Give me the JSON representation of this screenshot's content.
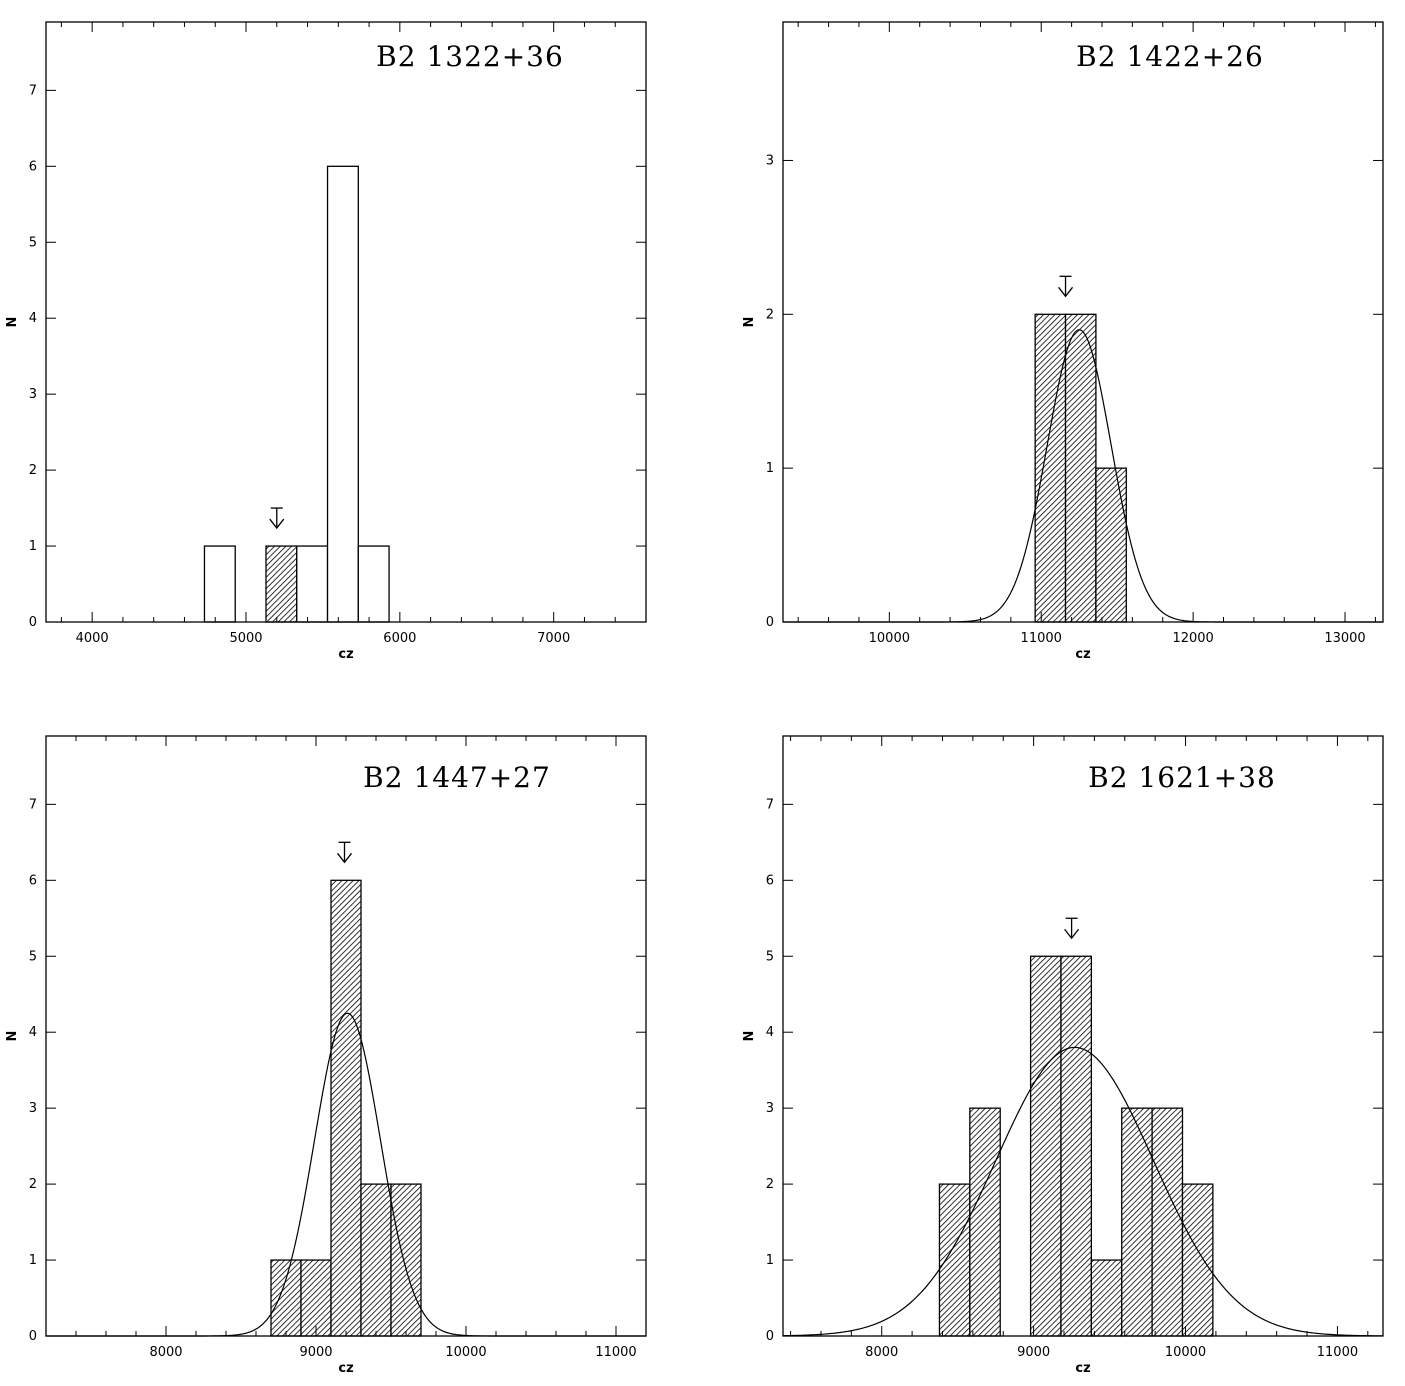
{
  "chart_data": [
    {
      "type": "bar",
      "title": "B2 1322+36",
      "xlabel": "cz",
      "ylabel": "N",
      "xlim": [
        3700,
        7600
      ],
      "ylim": [
        0,
        7.9
      ],
      "xticks": [
        4000,
        5000,
        6000,
        7000
      ],
      "yticks": [
        0,
        1,
        2,
        3,
        4,
        5,
        6,
        7
      ],
      "bin_width": 200,
      "bins": [
        {
          "x": 4730,
          "n": 1,
          "hatched": false
        },
        {
          "x": 5130,
          "n": 1,
          "hatched": true
        },
        {
          "x": 5330,
          "n": 1,
          "hatched": false
        },
        {
          "x": 5530,
          "n": 6,
          "hatched": false
        },
        {
          "x": 5730,
          "n": 1,
          "hatched": false
        }
      ],
      "marker_x": 5200,
      "gaussian": null
    },
    {
      "type": "bar",
      "title": "B2 1422+26",
      "xlabel": "cz",
      "ylabel": "N",
      "xlim": [
        9300,
        13250
      ],
      "ylim": [
        0,
        3.9
      ],
      "xticks": [
        10000,
        11000,
        12000,
        13000
      ],
      "yticks": [
        0,
        1,
        2,
        3
      ],
      "bin_width": 200,
      "bins": [
        {
          "x": 10960,
          "n": 2,
          "hatched": true
        },
        {
          "x": 11160,
          "n": 2,
          "hatched": true
        },
        {
          "x": 11360,
          "n": 1,
          "hatched": true
        }
      ],
      "marker_x": 11160,
      "gaussian": {
        "mean": 11250,
        "sigma": 210,
        "amplitude": 1.9
      }
    },
    {
      "type": "bar",
      "title": "B2 1447+27",
      "xlabel": "cz",
      "ylabel": "N",
      "xlim": [
        7200,
        11200
      ],
      "ylim": [
        0,
        7.9
      ],
      "xticks": [
        8000,
        9000,
        10000,
        11000
      ],
      "yticks": [
        0,
        1,
        2,
        3,
        4,
        5,
        6,
        7
      ],
      "bin_width": 200,
      "bins": [
        {
          "x": 8700,
          "n": 1,
          "hatched": true
        },
        {
          "x": 8900,
          "n": 1,
          "hatched": true
        },
        {
          "x": 9100,
          "n": 6,
          "hatched": true
        },
        {
          "x": 9300,
          "n": 2,
          "hatched": true
        },
        {
          "x": 9500,
          "n": 2,
          "hatched": true
        }
      ],
      "marker_x": 9190,
      "gaussian": {
        "mean": 9210,
        "sigma": 220,
        "amplitude": 4.25
      }
    },
    {
      "type": "bar",
      "title": "B2 1621+38",
      "xlabel": "cz",
      "ylabel": "N",
      "xlim": [
        7350,
        11300
      ],
      "ylim": [
        0,
        7.9
      ],
      "xticks": [
        8000,
        9000,
        10000,
        11000
      ],
      "yticks": [
        0,
        1,
        2,
        3,
        4,
        5,
        6,
        7
      ],
      "bin_width": 200,
      "bins": [
        {
          "x": 8380,
          "n": 2,
          "hatched": true
        },
        {
          "x": 8580,
          "n": 3,
          "hatched": true
        },
        {
          "x": 8980,
          "n": 5,
          "hatched": true
        },
        {
          "x": 9180,
          "n": 5,
          "hatched": true
        },
        {
          "x": 9380,
          "n": 1,
          "hatched": true
        },
        {
          "x": 9580,
          "n": 3,
          "hatched": true
        },
        {
          "x": 9780,
          "n": 3,
          "hatched": true
        },
        {
          "x": 9980,
          "n": 2,
          "hatched": true
        }
      ],
      "marker_x": 9250,
      "gaussian": {
        "mean": 9270,
        "sigma": 520,
        "amplitude": 3.8
      }
    }
  ]
}
